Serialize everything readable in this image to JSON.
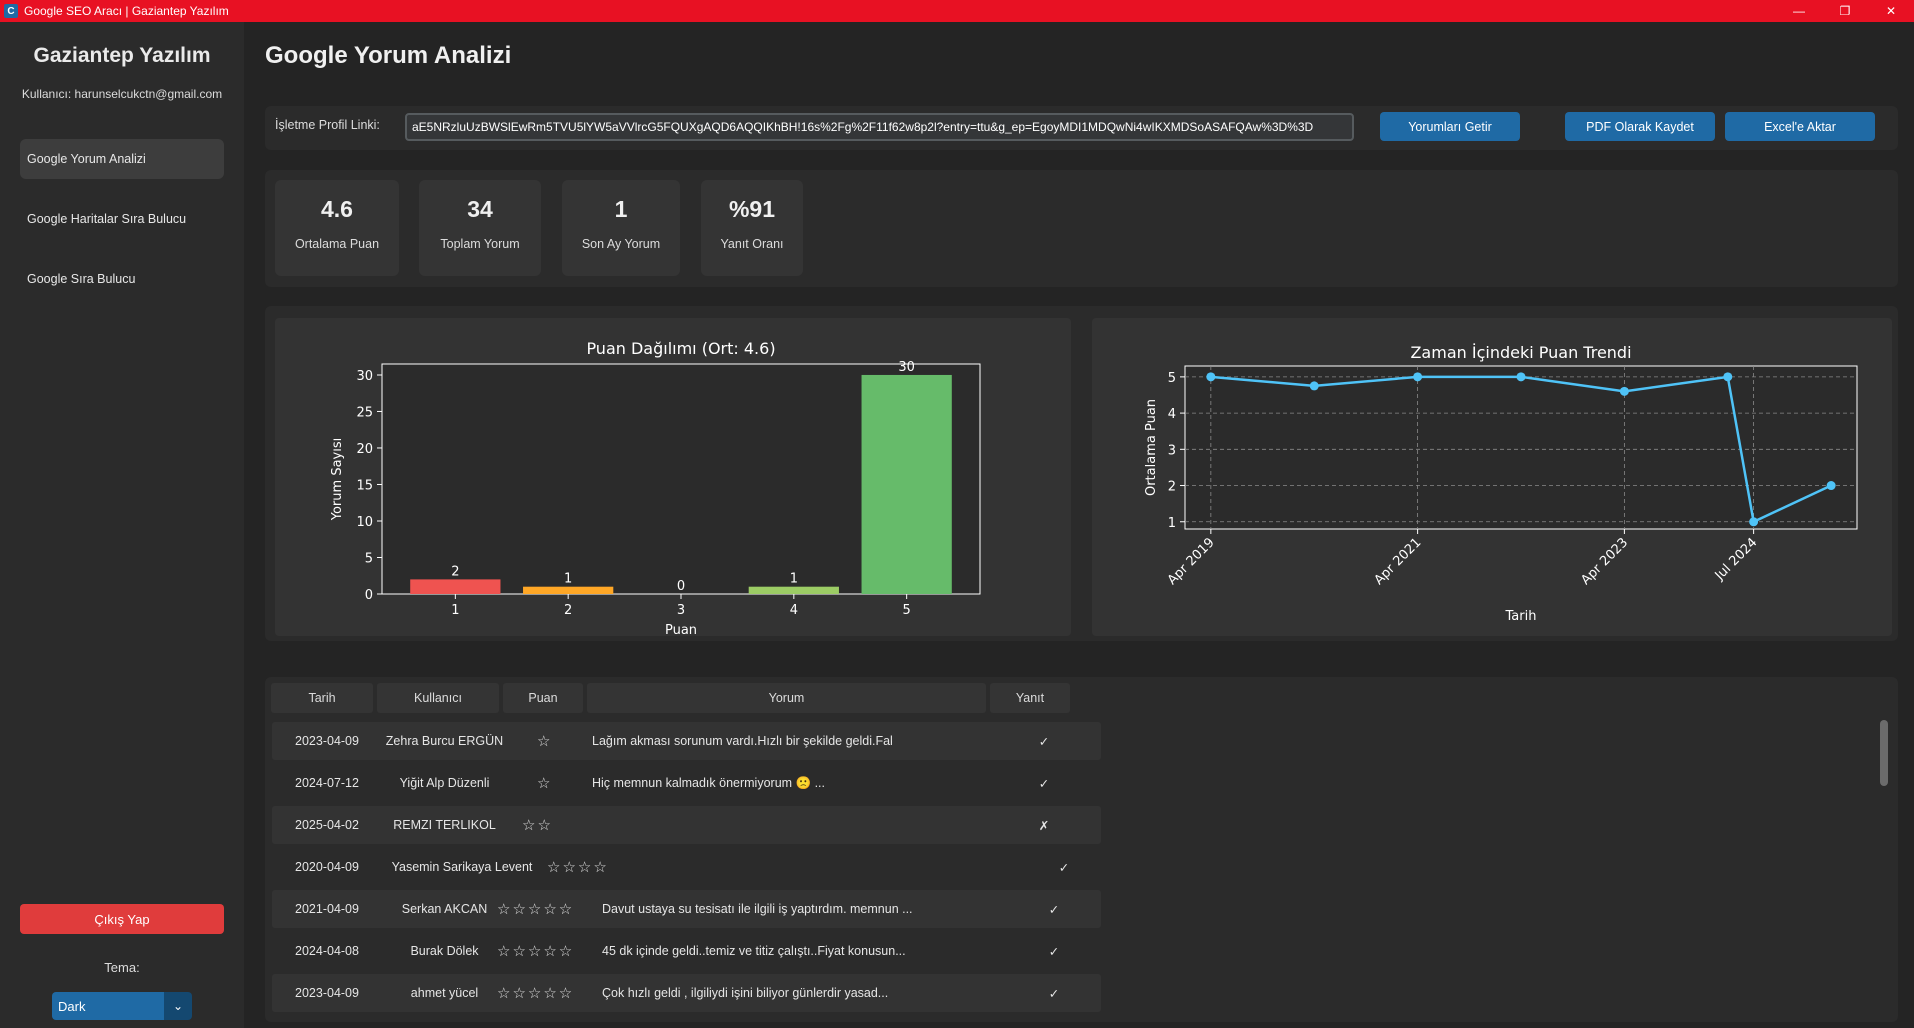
{
  "window": {
    "title": "Google SEO Aracı | Gaziantep Yazılım",
    "min": "—",
    "restore": "❐",
    "close": "✕"
  },
  "sidebar": {
    "brand": "Gaziantep Yazılım",
    "user": "Kullanıcı: harunselcukctn@gmail.com",
    "nav": [
      "Google Yorum Analizi",
      "Google Haritalar Sıra Bulucu",
      "Google Sıra Bulucu"
    ],
    "logout": "Çıkış Yap",
    "theme_label": "Tema:",
    "theme_value": "Dark"
  },
  "page": {
    "title": "Google Yorum Analizi"
  },
  "url": {
    "label": "İşletme Profil Linki:",
    "value": "aE5NRzluUzBWSlEwRm5TVU5lYW5aVVlrcG5FQUXgAQD6AQQIKhBH!16s%2Fg%2F11f62w8p2l?entry=ttu&g_ep=EgoyMDI1MDQwNi4wIKXMDSoASAFQAw%3D%3D"
  },
  "buttons": {
    "fetch": "Yorumları Getir",
    "pdf": "PDF Olarak Kaydet",
    "excel": "Excel'e Aktar"
  },
  "stats": [
    {
      "value": "4.6",
      "label": "Ortalama Puan"
    },
    {
      "value": "34",
      "label": "Toplam Yorum"
    },
    {
      "value": "1",
      "label": "Son Ay Yorum"
    },
    {
      "value": "%91",
      "label": "Yanıt Oranı"
    }
  ],
  "chart_data": [
    {
      "type": "bar",
      "title": "Puan Dağılımı (Ort: 4.6)",
      "xlabel": "Puan",
      "ylabel": "Yorum Sayısı",
      "categories": [
        "1",
        "2",
        "3",
        "4",
        "5"
      ],
      "values": [
        2,
        1,
        0,
        1,
        30
      ],
      "colors": [
        "#ef5350",
        "#ffa726",
        "#ffee58",
        "#9ccc65",
        "#66bb6a"
      ],
      "ylim": [
        0,
        31.5
      ],
      "yticks": [
        0,
        5,
        10,
        15,
        20,
        25,
        30
      ],
      "grid": false
    },
    {
      "type": "line",
      "title": "Zaman İçindeki Puan Trendi",
      "xlabel": "Tarih",
      "ylabel": "Ortalama Puan",
      "x": [
        "2019-04",
        "2020-04",
        "2021-04",
        "2022-04",
        "2023-04",
        "2024-04",
        "2024-07",
        "2025-04"
      ],
      "values": [
        5,
        4.75,
        5,
        5,
        4.6,
        5,
        1,
        2
      ],
      "xticks": [
        "Apr 2019",
        "Apr 2021",
        "Apr 2023",
        "Jul 2024"
      ],
      "yticks": [
        1,
        2,
        3,
        4,
        5
      ],
      "ylim": [
        0.8,
        5.3
      ],
      "color": "#4fc3f7",
      "grid": true
    }
  ],
  "table": {
    "headers": [
      "Tarih",
      "Kullanıcı",
      "Puan",
      "Yorum",
      "Yanıt"
    ],
    "rows": [
      {
        "date": "2023-04-09",
        "user": "Zehra Burcu ERGÜN",
        "stars": "☆",
        "comment": "Lağım akması sorunum vardı.Hızlı bir şekilde geldi.Fakat ...",
        "reply": "✓"
      },
      {
        "date": "2024-07-12",
        "user": "Yiğit Alp Düzenli",
        "stars": "☆",
        "comment": "Hiç memnun kalmadık önermiyorum 🙁 ...",
        "reply": "✓"
      },
      {
        "date": "2025-04-02",
        "user": "REMZI TERLIKOL",
        "stars": "☆☆",
        "comment": "",
        "reply": "✗"
      },
      {
        "date": "2020-04-09",
        "user": "Yasemin Sarikaya Levent",
        "stars": "☆☆☆☆",
        "comment": "",
        "reply": "✓"
      },
      {
        "date": "2021-04-09",
        "user": "Serkan AKCAN",
        "stars": "☆☆☆☆☆",
        "comment": "Davut ustaya su tesisatı ile ilgili iş yaptırdım. memnun ...",
        "reply": "✓"
      },
      {
        "date": "2024-04-08",
        "user": "Burak Dölek",
        "stars": "☆☆☆☆☆",
        "comment": "45 dk içinde geldi..temiz ve titiz çalıştı..Fiyat konusun...",
        "reply": "✓"
      },
      {
        "date": "2023-04-09",
        "user": "ahmet yücel",
        "stars": "☆☆☆☆☆",
        "comment": "Çok hızlı geldi , ilgiliydi işini biliyor günlerdir yasad...",
        "reply": "✓"
      }
    ]
  }
}
